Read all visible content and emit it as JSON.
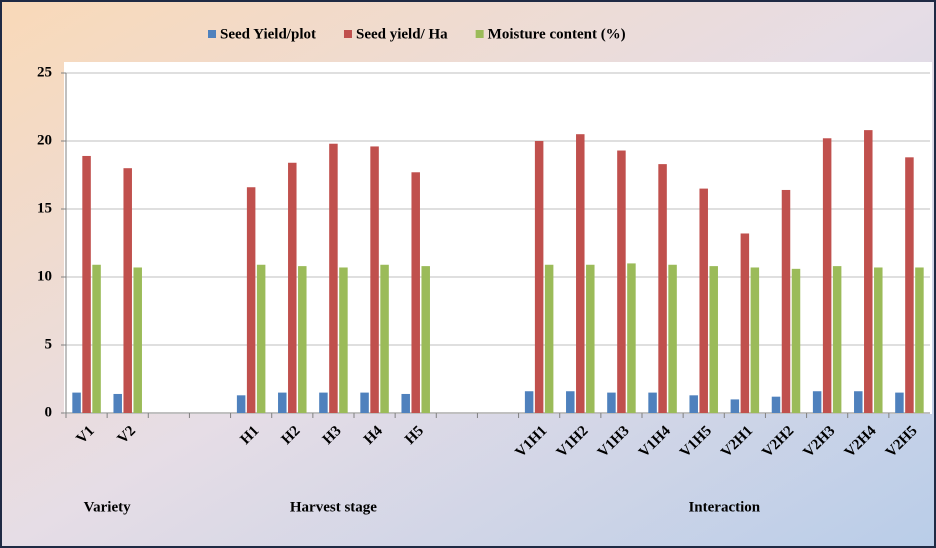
{
  "chart_data": {
    "type": "bar",
    "categories": [
      "V1",
      "V2",
      null,
      null,
      "H1",
      "H2",
      "H3",
      "H4",
      "H5",
      null,
      null,
      "V1H1",
      "V1H2",
      "V1H3",
      "V1H4",
      "V1H5",
      "V2H1",
      "V2H2",
      "V2H3",
      "V2H4",
      "V2H5"
    ],
    "series": [
      {
        "name": "Seed Yield/plot",
        "color": "#4f81bd",
        "values": [
          1.5,
          1.4,
          null,
          null,
          1.3,
          1.5,
          1.5,
          1.5,
          1.4,
          null,
          null,
          1.6,
          1.6,
          1.5,
          1.5,
          1.3,
          1.0,
          1.2,
          1.6,
          1.6,
          1.5
        ]
      },
      {
        "name": "Seed yield/ Ha",
        "color": "#c0504d",
        "values": [
          18.9,
          18.0,
          null,
          null,
          16.6,
          18.4,
          19.8,
          19.6,
          17.7,
          null,
          null,
          20.0,
          20.5,
          19.3,
          18.3,
          16.5,
          13.2,
          16.4,
          20.2,
          20.8,
          18.8
        ]
      },
      {
        "name": "Moisture content (%)",
        "color": "#9bbb59",
        "values": [
          10.9,
          10.7,
          null,
          null,
          10.9,
          10.8,
          10.7,
          10.9,
          10.8,
          null,
          null,
          10.9,
          10.9,
          11.0,
          10.9,
          10.8,
          10.7,
          10.6,
          10.8,
          10.7,
          10.7
        ]
      }
    ],
    "annotations": [
      "Variety",
      "Harvest stage",
      "Interaction"
    ],
    "ylim": [
      0,
      25
    ],
    "yticks": [
      0,
      5,
      10,
      15,
      20,
      25
    ],
    "grid": true,
    "legend": "top"
  }
}
